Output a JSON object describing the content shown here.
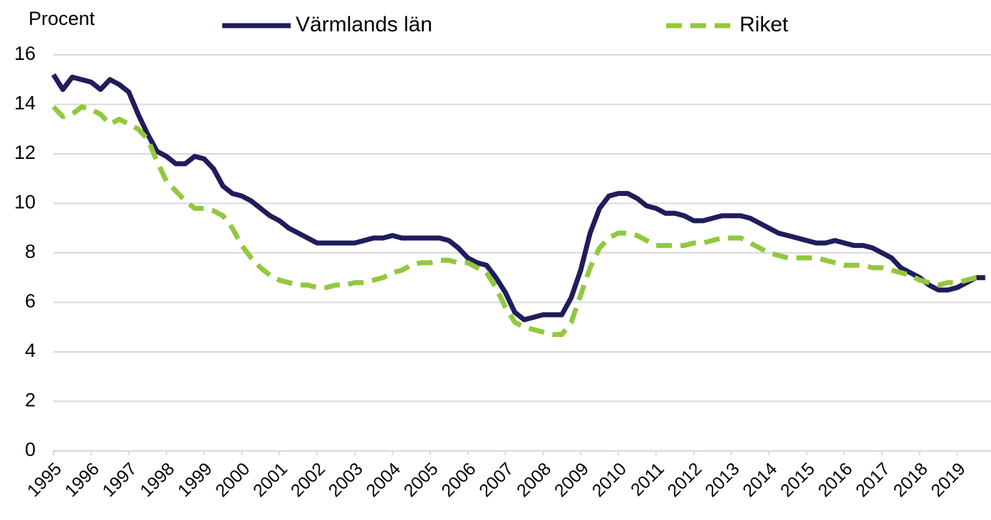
{
  "chart_data": {
    "type": "line",
    "y_label": "Procent",
    "x": [
      1995,
      1995.25,
      1995.5,
      1995.75,
      1996,
      1996.25,
      1996.5,
      1996.75,
      1997,
      1997.25,
      1997.5,
      1997.75,
      1998,
      1998.25,
      1998.5,
      1998.75,
      1999,
      1999.25,
      1999.5,
      1999.75,
      2000,
      2000.25,
      2000.5,
      2000.75,
      2001,
      2001.25,
      2001.5,
      2001.75,
      2002,
      2002.25,
      2002.5,
      2002.75,
      2003,
      2003.25,
      2003.5,
      2003.75,
      2004,
      2004.25,
      2004.5,
      2004.75,
      2005,
      2005.25,
      2005.5,
      2005.75,
      2006,
      2006.25,
      2006.5,
      2006.75,
      2007,
      2007.25,
      2007.5,
      2007.75,
      2008,
      2008.25,
      2008.5,
      2008.75,
      2009,
      2009.25,
      2009.5,
      2009.75,
      2010,
      2010.25,
      2010.5,
      2010.75,
      2011,
      2011.25,
      2011.5,
      2011.75,
      2012,
      2012.25,
      2012.5,
      2012.75,
      2013,
      2013.25,
      2013.5,
      2013.75,
      2014,
      2014.25,
      2014.5,
      2014.75,
      2015,
      2015.25,
      2015.5,
      2015.75,
      2016,
      2016.25,
      2016.5,
      2016.75,
      2017,
      2017.25,
      2017.5,
      2017.75,
      2018,
      2018.25,
      2018.5,
      2018.75,
      2019,
      2019.25,
      2019.5,
      2019.75
    ],
    "series": [
      {
        "name": "Värmlands län",
        "color": "#1f1d5c",
        "dashed": false,
        "values": [
          15.2,
          14.6,
          15.1,
          15.0,
          14.9,
          14.6,
          15.0,
          14.8,
          14.5,
          13.6,
          12.8,
          12.1,
          11.9,
          11.6,
          11.6,
          11.9,
          11.8,
          11.4,
          10.7,
          10.4,
          10.3,
          10.1,
          9.8,
          9.5,
          9.3,
          9.0,
          8.8,
          8.6,
          8.4,
          8.4,
          8.4,
          8.4,
          8.4,
          8.5,
          8.6,
          8.6,
          8.7,
          8.6,
          8.6,
          8.6,
          8.6,
          8.6,
          8.5,
          8.2,
          7.8,
          7.6,
          7.5,
          7.0,
          6.4,
          5.6,
          5.3,
          5.4,
          5.5,
          5.5,
          5.5,
          6.2,
          7.3,
          8.8,
          9.8,
          10.3,
          10.4,
          10.4,
          10.2,
          9.9,
          9.8,
          9.6,
          9.6,
          9.5,
          9.3,
          9.3,
          9.4,
          9.5,
          9.5,
          9.5,
          9.4,
          9.2,
          9.0,
          8.8,
          8.7,
          8.6,
          8.5,
          8.4,
          8.4,
          8.5,
          8.4,
          8.3,
          8.3,
          8.2,
          8.0,
          7.8,
          7.4,
          7.2,
          7.0,
          6.7,
          6.5,
          6.5,
          6.6,
          6.8,
          7.0,
          7.0
        ]
      },
      {
        "name": "Riket",
        "color": "#92c83e",
        "dashed": true,
        "values": [
          13.9,
          13.5,
          13.6,
          13.9,
          13.8,
          13.6,
          13.2,
          13.4,
          13.2,
          13.0,
          12.6,
          11.7,
          10.9,
          10.5,
          10.1,
          9.8,
          9.8,
          9.7,
          9.5,
          9.0,
          8.3,
          7.8,
          7.4,
          7.1,
          6.9,
          6.8,
          6.7,
          6.7,
          6.6,
          6.6,
          6.7,
          6.7,
          6.8,
          6.8,
          6.9,
          7.0,
          7.2,
          7.3,
          7.5,
          7.6,
          7.6,
          7.7,
          7.7,
          7.6,
          7.6,
          7.4,
          7.2,
          6.6,
          5.8,
          5.2,
          5.0,
          4.9,
          4.8,
          4.7,
          4.7,
          5.2,
          6.3,
          7.4,
          8.2,
          8.6,
          8.8,
          8.8,
          8.7,
          8.5,
          8.3,
          8.3,
          8.3,
          8.3,
          8.4,
          8.4,
          8.5,
          8.6,
          8.6,
          8.6,
          8.4,
          8.2,
          8.0,
          7.9,
          7.8,
          7.8,
          7.8,
          7.8,
          7.7,
          7.6,
          7.5,
          7.5,
          7.5,
          7.4,
          7.4,
          7.3,
          7.2,
          7.1,
          6.9,
          6.8,
          6.7,
          6.8,
          6.8,
          6.9,
          7.0,
          7.0
        ]
      }
    ],
    "xlim": [
      1995,
      2019.8
    ],
    "xticks": [
      1995,
      1996,
      1997,
      1998,
      1999,
      2000,
      2001,
      2002,
      2003,
      2004,
      2005,
      2006,
      2007,
      2008,
      2009,
      2010,
      2011,
      2012,
      2013,
      2014,
      2015,
      2016,
      2017,
      2018,
      2019
    ],
    "ylim": [
      0,
      16
    ],
    "yticks": [
      0,
      2,
      4,
      6,
      8,
      10,
      12,
      14,
      16
    ],
    "grid": true,
    "legend": "top"
  }
}
